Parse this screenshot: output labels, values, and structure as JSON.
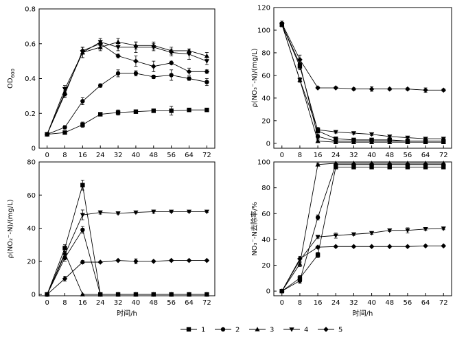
{
  "chart_data": [
    {
      "id": "a",
      "type": "line",
      "ylabel": "OD600",
      "xlabel": "",
      "xlim": [
        0,
        72
      ],
      "ylim": [
        0,
        0.8
      ],
      "xticks": [
        0,
        8,
        16,
        24,
        32,
        40,
        48,
        56,
        64,
        72
      ],
      "yticks": [
        0,
        0.2,
        0.4,
        0.6,
        0.8
      ],
      "ytick_labels": [
        "0",
        "0.2",
        "0.4",
        "0.6",
        "0.8"
      ],
      "x": [
        0,
        8,
        16,
        24,
        32,
        40,
        48,
        56,
        64,
        72
      ],
      "series": [
        {
          "name": "1",
          "marker": "square",
          "values": [
            0.08,
            0.09,
            0.135,
            0.195,
            0.205,
            0.21,
            0.215,
            0.215,
            0.22,
            0.22
          ],
          "errors": [
            0.005,
            0.005,
            0.015,
            0.01,
            0.015,
            0.01,
            0.01,
            0.025,
            0.01,
            0.01
          ]
        },
        {
          "name": "2",
          "marker": "circle",
          "values": [
            0.08,
            0.12,
            0.27,
            0.36,
            0.43,
            0.43,
            0.41,
            0.42,
            0.4,
            0.38
          ],
          "errors": [
            0.005,
            0.01,
            0.02,
            0.01,
            0.02,
            0.015,
            0.01,
            0.03,
            0.01,
            0.02
          ]
        },
        {
          "name": "3",
          "marker": "triangle",
          "values": [
            0.08,
            0.32,
            0.55,
            0.58,
            0.61,
            0.59,
            0.59,
            0.56,
            0.56,
            0.53
          ],
          "errors": [
            0.005,
            0.02,
            0.03,
            0.02,
            0.02,
            0.02,
            0.02,
            0.02,
            0.01,
            0.02
          ]
        },
        {
          "name": "4",
          "marker": "triangle-down",
          "values": [
            0.08,
            0.34,
            0.55,
            0.61,
            0.58,
            0.58,
            0.58,
            0.55,
            0.54,
            0.5
          ],
          "errors": [
            0.005,
            0.02,
            0.03,
            0.02,
            0.02,
            0.03,
            0.02,
            0.02,
            0.03,
            0.02
          ]
        },
        {
          "name": "5",
          "marker": "diamond",
          "values": [
            0.08,
            0.31,
            0.56,
            0.6,
            0.53,
            0.5,
            0.47,
            0.49,
            0.44,
            0.44
          ],
          "errors": [
            0.005,
            0.02,
            0.02,
            0.01,
            0.01,
            0.03,
            0.03,
            0.01,
            0.02,
            0.01
          ]
        }
      ]
    },
    {
      "id": "b",
      "type": "line",
      "ylabel": "ρ(NO₃⁻-N)/(mg/L)",
      "xlabel": "",
      "xlim": [
        0,
        72
      ],
      "ylim": [
        0,
        120
      ],
      "xticks": [
        0,
        8,
        16,
        24,
        32,
        40,
        48,
        56,
        64,
        72
      ],
      "yticks": [
        0,
        20,
        40,
        60,
        80,
        100,
        120
      ],
      "ytick_labels": [
        "0",
        "20",
        "40",
        "60",
        "80",
        "100",
        "120"
      ],
      "x": [
        0,
        8,
        16,
        24,
        32,
        40,
        48,
        56,
        64,
        72
      ],
      "series": [
        {
          "name": "1",
          "marker": "square",
          "values": [
            105,
            68,
            11,
            4,
            3,
            3,
            3,
            2,
            2,
            2
          ],
          "errors": [
            2,
            3,
            2,
            1,
            1,
            1,
            1,
            1,
            1,
            1
          ]
        },
        {
          "name": "2",
          "marker": "circle",
          "values": [
            105,
            70,
            6,
            2,
            2,
            2,
            2,
            2,
            2,
            2
          ],
          "errors": [
            2,
            3,
            2,
            1,
            1,
            1,
            1,
            1,
            1,
            1
          ]
        },
        {
          "name": "3",
          "marker": "triangle",
          "values": [
            105,
            56,
            2,
            1,
            1,
            1,
            1,
            1,
            1,
            1
          ],
          "errors": [
            2,
            2,
            1,
            1,
            1,
            1,
            1,
            1,
            1,
            1
          ]
        },
        {
          "name": "4",
          "marker": "triangle-down",
          "values": [
            105,
            56,
            12,
            10,
            9,
            8,
            6,
            5,
            4,
            4
          ],
          "errors": [
            2,
            2,
            2,
            1,
            1,
            1,
            1,
            1,
            1,
            1
          ]
        },
        {
          "name": "5",
          "marker": "diamond",
          "values": [
            106,
            74,
            49,
            49,
            48,
            48,
            48,
            48,
            47,
            47
          ],
          "errors": [
            2,
            4,
            1,
            1,
            1,
            2,
            1,
            1,
            2,
            1
          ]
        }
      ]
    },
    {
      "id": "c",
      "type": "line",
      "ylabel": "ρ(NO₂⁻-N)/(mg/L)",
      "xlabel": "时间/h",
      "xlim": [
        0,
        72
      ],
      "ylim": [
        0,
        80
      ],
      "xticks": [
        0,
        8,
        16,
        24,
        32,
        40,
        48,
        56,
        64,
        72
      ],
      "yticks": [
        0,
        20,
        40,
        60,
        80
      ],
      "ytick_labels": [
        "0",
        "20",
        "40",
        "60",
        "80"
      ],
      "x": [
        0,
        8,
        16,
        24,
        32,
        40,
        48,
        56,
        64,
        72
      ],
      "series": [
        {
          "name": "1",
          "marker": "square",
          "values": [
            0,
            28,
            66,
            0,
            0,
            0,
            0,
            0,
            0,
            0
          ],
          "errors": [
            0.5,
            2,
            3,
            0.3,
            0.3,
            0.3,
            0.3,
            0.3,
            0.3,
            0.3
          ]
        },
        {
          "name": "2",
          "marker": "circle",
          "values": [
            0,
            22,
            39,
            0,
            0,
            0,
            0,
            0,
            0,
            0
          ],
          "errors": [
            0.5,
            2,
            2,
            0.3,
            0.3,
            0.3,
            0.3,
            0.3,
            0.3,
            0.3
          ]
        },
        {
          "name": "3",
          "marker": "triangle",
          "values": [
            0,
            25,
            0,
            0,
            0,
            0,
            0,
            0,
            0,
            0
          ],
          "errors": [
            0.5,
            2,
            0.3,
            0.3,
            0.3,
            0.3,
            0.3,
            0.3,
            0.3,
            0.3
          ]
        },
        {
          "name": "4",
          "marker": "triangle-down",
          "values": [
            0,
            24,
            48,
            49.5,
            49,
            49.5,
            50,
            50,
            50,
            50
          ],
          "errors": [
            0.5,
            2,
            3,
            1,
            0.5,
            0.5,
            1,
            0.5,
            0.5,
            0.5
          ]
        },
        {
          "name": "5",
          "marker": "diamond",
          "values": [
            0,
            9.5,
            19.5,
            19.5,
            20.5,
            20,
            20,
            20.5,
            20.5,
            20.5
          ],
          "errors": [
            0.5,
            1.5,
            1,
            0.5,
            0.5,
            1.5,
            0.5,
            0.5,
            0.5,
            0.5
          ]
        }
      ]
    },
    {
      "id": "d",
      "type": "line",
      "ylabel": "NO₃⁻-N去除率/%",
      "xlabel": "时间/h",
      "xlim": [
        0,
        72
      ],
      "ylim": [
        0,
        100
      ],
      "xticks": [
        0,
        8,
        16,
        24,
        32,
        40,
        48,
        56,
        64,
        72
      ],
      "yticks": [
        0,
        20,
        40,
        60,
        80,
        100
      ],
      "ytick_labels": [
        "0",
        "20",
        "40",
        "60",
        "80",
        "100"
      ],
      "x": [
        0,
        8,
        16,
        24,
        32,
        40,
        48,
        56,
        64,
        72
      ],
      "series": [
        {
          "name": "1",
          "marker": "square",
          "values": [
            0,
            10,
            28,
            96,
            96,
            96,
            96,
            96,
            96,
            96
          ],
          "errors": [
            0.5,
            2,
            2,
            1,
            1,
            1,
            1,
            1,
            1,
            1
          ]
        },
        {
          "name": "2",
          "marker": "circle",
          "values": [
            0,
            8,
            57,
            98,
            98,
            98,
            98,
            98,
            98,
            98
          ],
          "errors": [
            0.5,
            2,
            2,
            1,
            1,
            1,
            1,
            1,
            1,
            1
          ]
        },
        {
          "name": "3",
          "marker": "triangle",
          "values": [
            0,
            21,
            98,
            99,
            99,
            99,
            99,
            99,
            99,
            99
          ],
          "errors": [
            0.5,
            2,
            1,
            1,
            1,
            1,
            1,
            1,
            1,
            1
          ]
        },
        {
          "name": "4",
          "marker": "triangle-down",
          "values": [
            0,
            24,
            42,
            43,
            44,
            45,
            47,
            47,
            48,
            48.5
          ],
          "errors": [
            0.5,
            2,
            1,
            2,
            1,
            1,
            1,
            2,
            1,
            1
          ]
        },
        {
          "name": "5",
          "marker": "diamond",
          "values": [
            0,
            25,
            34,
            34.5,
            34.5,
            34.5,
            34.5,
            34.5,
            35,
            35
          ],
          "errors": [
            0.5,
            2,
            1,
            0.5,
            0.5,
            0.5,
            0.5,
            0.5,
            0.5,
            0.5
          ]
        }
      ]
    }
  ],
  "legend": {
    "placement": "bottom-center",
    "entries": [
      {
        "label": "1",
        "marker": "square"
      },
      {
        "label": "2",
        "marker": "circle"
      },
      {
        "label": "3",
        "marker": "triangle"
      },
      {
        "label": "4",
        "marker": "triangle-down"
      },
      {
        "label": "5",
        "marker": "diamond"
      }
    ]
  }
}
